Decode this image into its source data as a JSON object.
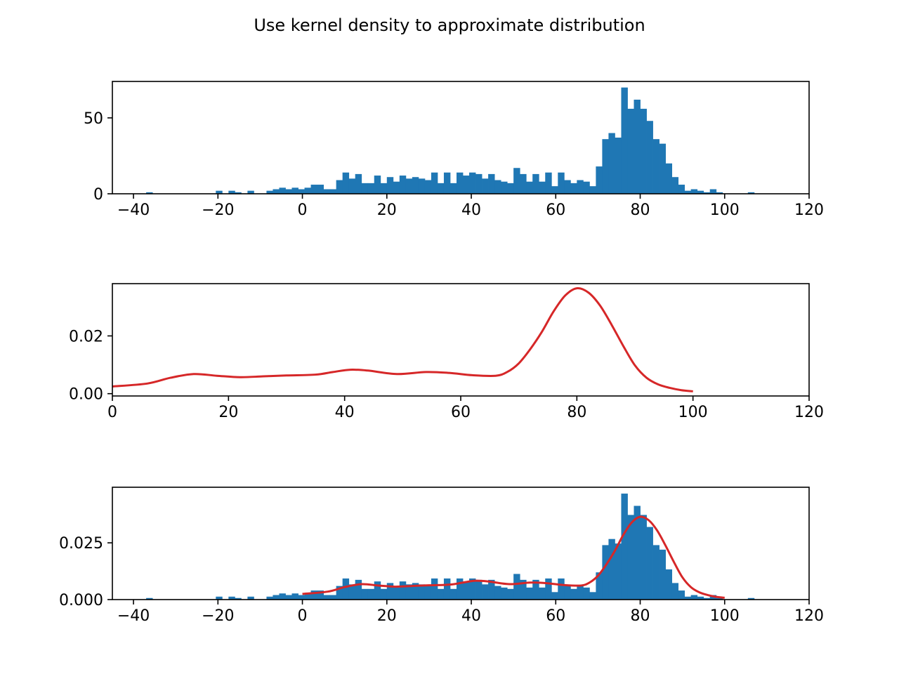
{
  "figure_title": "Use kernel density to approximate distribution",
  "colors": {
    "histogram": "#1f77b4",
    "kde": "#d62728"
  },
  "chart_data": [
    {
      "type": "bar",
      "title": "",
      "xlabel": "",
      "ylabel": "",
      "bin_width": 1.5,
      "xlim": [
        -45,
        120
      ],
      "ylim": [
        0,
        74
      ],
      "xticks": [
        -40,
        -20,
        0,
        20,
        40,
        60,
        80,
        100,
        120
      ],
      "xtick_labels": [
        "−40",
        "−20",
        "0",
        "20",
        "40",
        "60",
        "80",
        "100",
        "120"
      ],
      "yticks": [
        0,
        50
      ],
      "ytick_labels": [
        "0",
        "50"
      ],
      "bin_starts": [
        -37,
        -20.5,
        -17.5,
        -16,
        -13,
        -8.5,
        -7,
        -5.5,
        -4,
        -2.5,
        -1,
        0.5,
        2,
        3.5,
        5,
        6.5,
        8,
        9.5,
        11,
        12.5,
        14,
        15.5,
        17,
        18.5,
        20,
        21.5,
        23,
        24.5,
        26,
        27.5,
        29,
        30.5,
        32,
        33.5,
        35,
        36.5,
        38,
        39.5,
        41,
        42.5,
        44,
        45.5,
        47,
        48.5,
        50,
        51.5,
        53,
        54.5,
        56,
        57.5,
        59,
        60.5,
        62,
        63.5,
        65,
        66.5,
        68,
        69.5,
        71,
        72.5,
        74,
        75.5,
        77,
        78.5,
        80,
        81.5,
        83,
        84.5,
        86,
        87.5,
        89,
        90.5,
        92,
        93.5,
        95,
        96.5,
        98,
        105.5,
        108.5,
        111.5
      ],
      "values": [
        1,
        2,
        2,
        1,
        2,
        2,
        3,
        4,
        3,
        4,
        3,
        4,
        6,
        6,
        3,
        3,
        9,
        14,
        10,
        13,
        7,
        7,
        12,
        7,
        11,
        8,
        12,
        10,
        11,
        10,
        9,
        14,
        7,
        14,
        7,
        14,
        12,
        14,
        13,
        10,
        13,
        9,
        8,
        7,
        17,
        13,
        8,
        13,
        8,
        14,
        5,
        14,
        9,
        7,
        9,
        8,
        5,
        18,
        36,
        40,
        37,
        70,
        56,
        62,
        56,
        48,
        36,
        33,
        20,
        11,
        6,
        2,
        3,
        2,
        1,
        3,
        1,
        1
      ]
    },
    {
      "type": "line",
      "title": "",
      "xlabel": "",
      "ylabel": "",
      "xlim": [
        0,
        120
      ],
      "ylim": [
        -0.0008,
        0.0381
      ],
      "xticks": [
        0,
        20,
        40,
        60,
        80,
        100,
        120
      ],
      "xtick_labels": [
        "0",
        "20",
        "40",
        "60",
        "80",
        "100",
        "120"
      ],
      "yticks": [
        0.0,
        0.02
      ],
      "ytick_labels": [
        "0.00",
        "0.02"
      ],
      "x": [
        0,
        6,
        10,
        14,
        18,
        22,
        26,
        30,
        35,
        38,
        41,
        44,
        49,
        54,
        58,
        62,
        66,
        68,
        70,
        72,
        74,
        76,
        78,
        80,
        82,
        84,
        86,
        88,
        90,
        92,
        94,
        96,
        98,
        100
      ],
      "y": [
        0.0025,
        0.0035,
        0.0055,
        0.0068,
        0.0062,
        0.0057,
        0.006,
        0.0063,
        0.0066,
        0.0075,
        0.0083,
        0.008,
        0.0068,
        0.0075,
        0.0072,
        0.0064,
        0.0062,
        0.0075,
        0.0105,
        0.0155,
        0.0215,
        0.0285,
        0.034,
        0.0365,
        0.035,
        0.0305,
        0.0238,
        0.0165,
        0.0098,
        0.0055,
        0.0032,
        0.002,
        0.0012,
        0.0008
      ]
    },
    {
      "type": "bar",
      "title": "",
      "xlabel": "",
      "ylabel": "",
      "bin_width": 1.5,
      "xlim": [
        -45,
        120
      ],
      "ylim": [
        0,
        0.0495
      ],
      "xticks": [
        -40,
        -20,
        0,
        20,
        40,
        60,
        80,
        100,
        120
      ],
      "xtick_labels": [
        "−40",
        "−20",
        "0",
        "20",
        "40",
        "60",
        "80",
        "100",
        "120"
      ],
      "yticks": [
        0.0,
        0.025
      ],
      "ytick_labels": [
        "0.000",
        "0.025"
      ],
      "bin_starts": [
        -37,
        -20.5,
        -17.5,
        -16,
        -13,
        -8.5,
        -7,
        -5.5,
        -4,
        -2.5,
        -1,
        0.5,
        2,
        3.5,
        5,
        6.5,
        8,
        9.5,
        11,
        12.5,
        14,
        15.5,
        17,
        18.5,
        20,
        21.5,
        23,
        24.5,
        26,
        27.5,
        29,
        30.5,
        32,
        33.5,
        35,
        36.5,
        38,
        39.5,
        41,
        42.5,
        44,
        45.5,
        47,
        48.5,
        50,
        51.5,
        53,
        54.5,
        56,
        57.5,
        59,
        60.5,
        62,
        63.5,
        65,
        66.5,
        68,
        69.5,
        71,
        72.5,
        74,
        75.5,
        77,
        78.5,
        80,
        81.5,
        83,
        84.5,
        86,
        87.5,
        89,
        90.5,
        92,
        93.5,
        95,
        96.5,
        98,
        105.5,
        108.5,
        111.5
      ],
      "values": [
        0.0007,
        0.0013,
        0.0013,
        0.0007,
        0.0013,
        0.0013,
        0.002,
        0.0027,
        0.002,
        0.0027,
        0.002,
        0.0027,
        0.004,
        0.004,
        0.002,
        0.002,
        0.006,
        0.0093,
        0.0067,
        0.0087,
        0.0047,
        0.0047,
        0.008,
        0.0047,
        0.0073,
        0.0053,
        0.008,
        0.0067,
        0.0073,
        0.0067,
        0.006,
        0.0093,
        0.0047,
        0.0093,
        0.0047,
        0.0093,
        0.008,
        0.0093,
        0.0087,
        0.0067,
        0.0087,
        0.006,
        0.0053,
        0.0047,
        0.0113,
        0.0087,
        0.0053,
        0.0087,
        0.0053,
        0.0093,
        0.0033,
        0.0093,
        0.006,
        0.0047,
        0.006,
        0.0053,
        0.0033,
        0.012,
        0.024,
        0.0267,
        0.0247,
        0.0467,
        0.0373,
        0.0413,
        0.0373,
        0.032,
        0.024,
        0.022,
        0.0133,
        0.0073,
        0.004,
        0.0013,
        0.002,
        0.0013,
        0.0007,
        0.002,
        0.0007,
        0.0007
      ],
      "kde_x": [
        0,
        6,
        10,
        14,
        18,
        22,
        26,
        30,
        35,
        38,
        41,
        44,
        49,
        54,
        58,
        62,
        66,
        68,
        70,
        72,
        74,
        76,
        78,
        80,
        82,
        84,
        86,
        88,
        90,
        92,
        94,
        96,
        98,
        100
      ],
      "kde_y": [
        0.0025,
        0.0035,
        0.0055,
        0.0068,
        0.0062,
        0.0057,
        0.006,
        0.0063,
        0.0066,
        0.0075,
        0.0083,
        0.008,
        0.0068,
        0.0075,
        0.0072,
        0.0064,
        0.0062,
        0.0075,
        0.0105,
        0.0155,
        0.0215,
        0.0285,
        0.034,
        0.0365,
        0.035,
        0.0305,
        0.0238,
        0.0165,
        0.0098,
        0.0055,
        0.0032,
        0.002,
        0.0012,
        0.0008
      ]
    }
  ]
}
